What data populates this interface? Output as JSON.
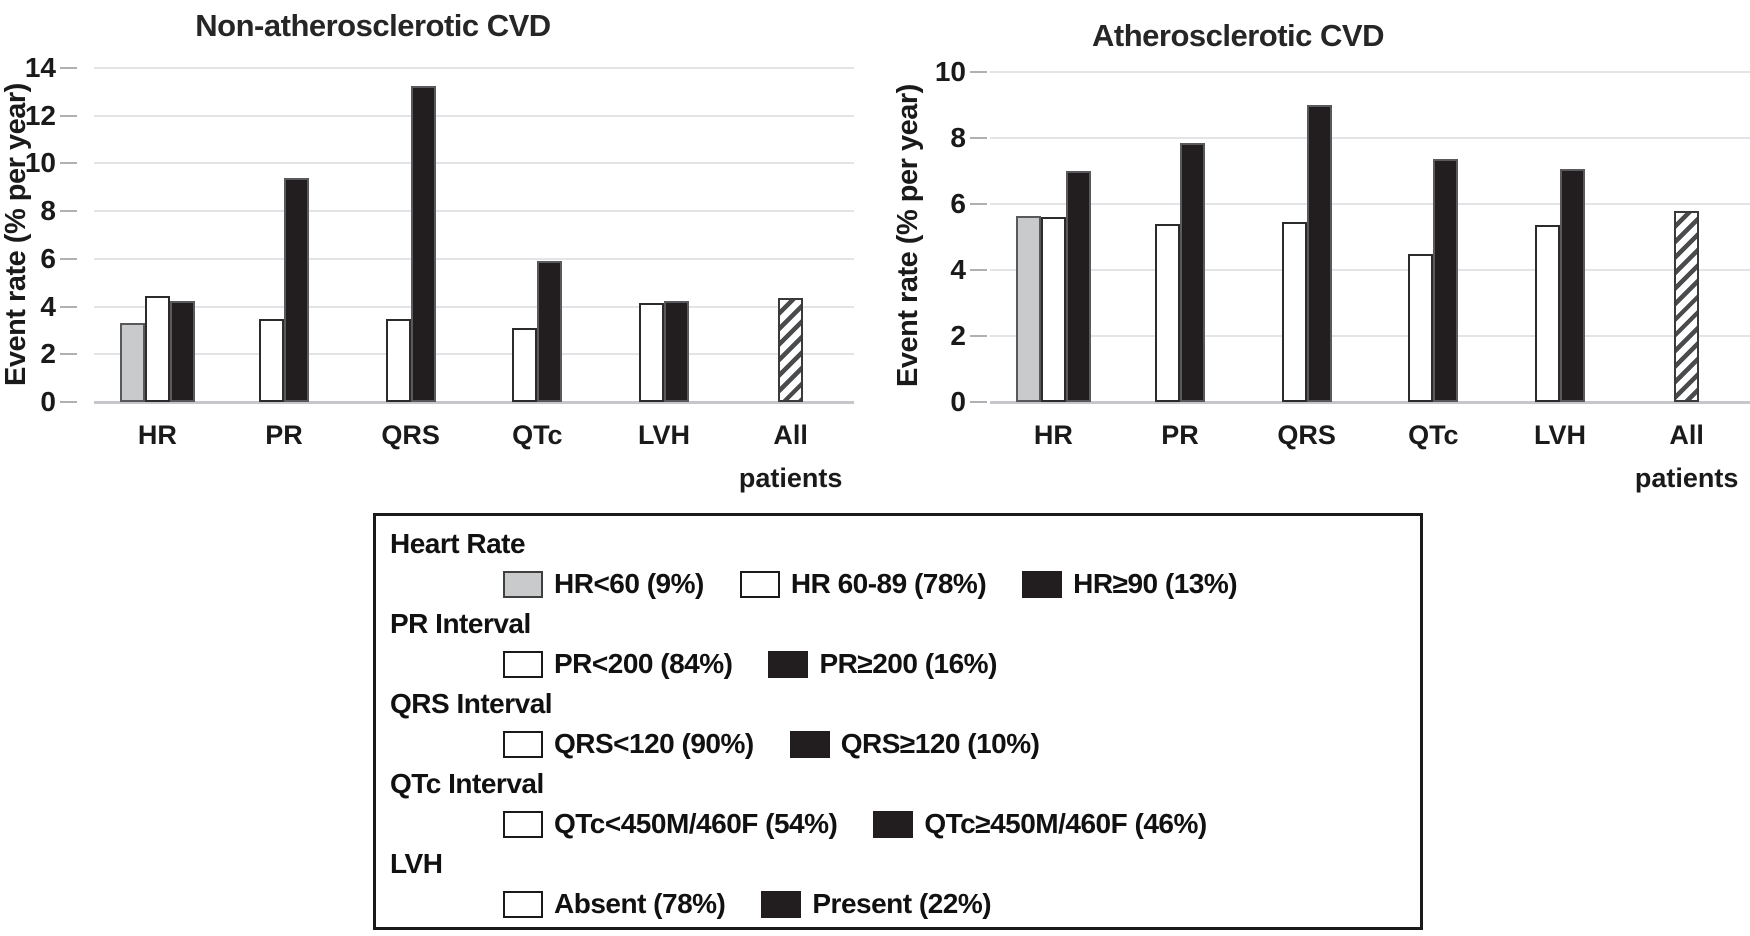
{
  "chart_data": [
    {
      "type": "bar",
      "title": "Non-atherosclerotic CVD",
      "ylabel": "Event rate (% per year)",
      "xlabel": "",
      "ylim": [
        0,
        14
      ],
      "yticks": [
        0,
        2,
        4,
        6,
        8,
        10,
        12,
        14
      ],
      "grid": "horizontal",
      "legend_position": "below-figure-shared-box",
      "categories": [
        "HR",
        "PR",
        "QRS",
        "QTc",
        "LVH",
        "All patients"
      ],
      "groups": [
        {
          "category": "HR",
          "bars": [
            {
              "legend": "HR<60",
              "style": "gray",
              "value": 3.3
            },
            {
              "legend": "HR 60-89",
              "style": "white",
              "value": 4.45
            },
            {
              "legend": "HR≥90",
              "style": "black",
              "value": 4.25
            }
          ]
        },
        {
          "category": "PR",
          "bars": [
            {
              "legend": "PR<200",
              "style": "white",
              "value": 3.5
            },
            {
              "legend": "PR≥200",
              "style": "black",
              "value": 9.4
            }
          ]
        },
        {
          "category": "QRS",
          "bars": [
            {
              "legend": "QRS<120",
              "style": "white",
              "value": 3.5
            },
            {
              "legend": "QRS≥120",
              "style": "black",
              "value": 13.25
            }
          ]
        },
        {
          "category": "QTc",
          "bars": [
            {
              "legend": "QTc<450M/460F",
              "style": "white",
              "value": 3.1
            },
            {
              "legend": "QTc≥450M/460F",
              "style": "black",
              "value": 5.9
            }
          ]
        },
        {
          "category": "LVH",
          "bars": [
            {
              "legend": "Absent",
              "style": "white",
              "value": 4.15
            },
            {
              "legend": "Present",
              "style": "black",
              "value": 4.25
            }
          ]
        },
        {
          "category": "All patients",
          "bars": [
            {
              "legend": "All patients",
              "style": "hatch",
              "value": 4.35
            }
          ]
        }
      ]
    },
    {
      "type": "bar",
      "title": "Atherosclerotic CVD",
      "ylabel": "Event rate (% per year)",
      "xlabel": "",
      "ylim": [
        0,
        10
      ],
      "yticks": [
        0,
        2,
        4,
        6,
        8,
        10
      ],
      "grid": "horizontal",
      "legend_position": "below-figure-shared-box",
      "categories": [
        "HR",
        "PR",
        "QRS",
        "QTc",
        "LVH",
        "All patients"
      ],
      "groups": [
        {
          "category": "HR",
          "bars": [
            {
              "legend": "HR<60",
              "style": "gray",
              "value": 5.65
            },
            {
              "legend": "HR 60-89",
              "style": "white",
              "value": 5.6
            },
            {
              "legend": "HR≥90",
              "style": "black",
              "value": 7.0
            }
          ]
        },
        {
          "category": "PR",
          "bars": [
            {
              "legend": "PR<200",
              "style": "white",
              "value": 5.4
            },
            {
              "legend": "PR≥200",
              "style": "black",
              "value": 7.85
            }
          ]
        },
        {
          "category": "QRS",
          "bars": [
            {
              "legend": "QRS<120",
              "style": "white",
              "value": 5.45
            },
            {
              "legend": "QRS≥120",
              "style": "black",
              "value": 9.0
            }
          ]
        },
        {
          "category": "QTc",
          "bars": [
            {
              "legend": "QTc<450M/460F",
              "style": "white",
              "value": 4.5
            },
            {
              "legend": "QTc≥450M/460F",
              "style": "black",
              "value": 7.35
            }
          ]
        },
        {
          "category": "LVH",
          "bars": [
            {
              "legend": "Absent",
              "style": "white",
              "value": 5.35
            },
            {
              "legend": "Present",
              "style": "black",
              "value": 7.05
            }
          ]
        },
        {
          "category": "All patients",
          "bars": [
            {
              "legend": "All patients",
              "style": "hatch",
              "value": 5.8
            }
          ]
        }
      ]
    }
  ],
  "legend": {
    "sections": [
      {
        "header": "Heart Rate",
        "items": [
          {
            "style": "gray",
            "label": "HR<60 (9%)"
          },
          {
            "style": "white",
            "label": "HR 60-89 (78%)"
          },
          {
            "style": "black",
            "label": "HR≥90 (13%)"
          }
        ]
      },
      {
        "header": "PR Interval",
        "items": [
          {
            "style": "white",
            "label": "PR<200 (84%)"
          },
          {
            "style": "black",
            "label": "PR≥200 (16%)"
          }
        ]
      },
      {
        "header": "QRS Interval",
        "items": [
          {
            "style": "white",
            "label": "QRS<120 (90%)"
          },
          {
            "style": "black",
            "label": "QRS≥120 (10%)"
          }
        ]
      },
      {
        "header": "QTc Interval",
        "items": [
          {
            "style": "white",
            "label": "QTc<450M/460F (54%)"
          },
          {
            "style": "black",
            "label": "QTc≥450M/460F (46%)"
          }
        ]
      },
      {
        "header": "LVH",
        "items": [
          {
            "style": "white",
            "label": "Absent (78%)"
          },
          {
            "style": "black",
            "label": "Present (22%)"
          }
        ]
      }
    ]
  },
  "colors": {
    "bar_gray": "#c9cacc",
    "bar_white": "#ffffff",
    "bar_black": "#221e1f",
    "hatch_stripe": "#4a4b4d",
    "gridline": "#e4e4e6",
    "axis_line": "#c6c6ca",
    "text": "#1a1a1a"
  }
}
